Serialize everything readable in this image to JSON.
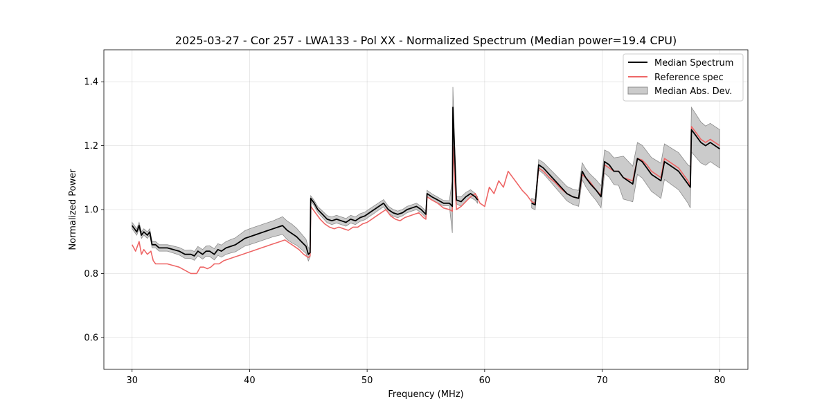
{
  "chart_data": {
    "type": "line",
    "title": "2025-03-27 - Cor 257 - LWA133 - Pol XX - Normalized Spectrum (Median power=19.4 CPU)",
    "xlabel": "Frequency (MHz)",
    "ylabel": "Normalized Power",
    "xlim": [
      27.6,
      82.4
    ],
    "ylim": [
      0.5,
      1.5
    ],
    "xticks": [
      30,
      40,
      50,
      60,
      70,
      80
    ],
    "yticks": [
      0.6,
      0.8,
      1.0,
      1.2,
      1.4
    ],
    "xtick_labels": [
      "30",
      "40",
      "50",
      "60",
      "70",
      "80"
    ],
    "ytick_labels": [
      "0.6",
      "0.8",
      "1.0",
      "1.2",
      "1.4"
    ],
    "grid": true,
    "legend_position": "top-right",
    "colors": {
      "median": "#000000",
      "reference": "#ee6666",
      "mad_fill": "#a0a0a0",
      "mad_edge": "#8c8c8c"
    },
    "series": [
      {
        "name": "Median Spectrum",
        "segments": [
          {
            "x": [
              30.0,
              30.4,
              30.6,
              30.8,
              31.0,
              31.3,
              31.5,
              31.7,
              32.0,
              32.3,
              32.6,
              33.0,
              33.5,
              34.0,
              34.5,
              35.0,
              35.3,
              35.6,
              36.0,
              36.3,
              36.6,
              37.0,
              37.3,
              37.6,
              38.0,
              38.4,
              38.8,
              39.2,
              39.6,
              40.0,
              40.4,
              40.8,
              41.2,
              41.6,
              42.0,
              42.4,
              42.8,
              43.2,
              43.6,
              44.0,
              44.4,
              44.8,
              45.0,
              45.15,
              45.2,
              45.5,
              45.8,
              46.2,
              46.6,
              47.0,
              47.4,
              47.8,
              48.2,
              48.6,
              49.0,
              49.4,
              49.8,
              50.2,
              50.6,
              51.0,
              51.4,
              51.8,
              52.2,
              52.6,
              53.0,
              53.4,
              53.8,
              54.2,
              54.6,
              55.0,
              55.1,
              55.5,
              56.0,
              56.5,
              57.0,
              57.25,
              57.3,
              57.6,
              58.0,
              58.4,
              58.8,
              59.2,
              59.4
            ],
            "y": [
              0.95,
              0.93,
              0.95,
              0.92,
              0.93,
              0.92,
              0.93,
              0.89,
              0.89,
              0.88,
              0.88,
              0.88,
              0.875,
              0.87,
              0.86,
              0.86,
              0.855,
              0.87,
              0.86,
              0.87,
              0.87,
              0.86,
              0.875,
              0.87,
              0.88,
              0.885,
              0.89,
              0.9,
              0.91,
              0.915,
              0.92,
              0.925,
              0.93,
              0.935,
              0.94,
              0.945,
              0.95,
              0.935,
              0.925,
              0.915,
              0.9,
              0.885,
              0.86,
              0.865,
              1.035,
              1.02,
              1.0,
              0.985,
              0.97,
              0.965,
              0.97,
              0.965,
              0.96,
              0.97,
              0.965,
              0.975,
              0.98,
              0.99,
              1.0,
              1.01,
              1.02,
              1.0,
              0.99,
              0.985,
              0.99,
              1.0,
              1.005,
              1.01,
              1.0,
              0.985,
              1.05,
              1.04,
              1.03,
              1.02,
              1.02,
              1.01,
              1.32,
              1.03,
              1.025,
              1.04,
              1.05,
              1.04,
              1.03
            ]
          },
          {
            "x": [
              64.0,
              64.3,
              64.6,
              65.0,
              65.5,
              66.0,
              66.5,
              67.0,
              67.5,
              68.0,
              68.3,
              68.6,
              69.0,
              69.5,
              69.9,
              70.2,
              70.6,
              71.0,
              71.4,
              71.8,
              72.2,
              72.6,
              73.0,
              73.4,
              73.8,
              74.2,
              74.6,
              75.0,
              75.3,
              75.7,
              76.1,
              76.5,
              76.9,
              77.3,
              77.5,
              77.6,
              78.0,
              78.4,
              78.8,
              79.2,
              79.6,
              80.0
            ],
            "y": [
              1.02,
              1.015,
              1.14,
              1.13,
              1.11,
              1.09,
              1.07,
              1.05,
              1.04,
              1.035,
              1.12,
              1.1,
              1.08,
              1.06,
              1.04,
              1.15,
              1.14,
              1.12,
              1.12,
              1.1,
              1.09,
              1.08,
              1.16,
              1.15,
              1.13,
              1.11,
              1.1,
              1.09,
              1.15,
              1.14,
              1.13,
              1.12,
              1.1,
              1.08,
              1.07,
              1.25,
              1.23,
              1.21,
              1.2,
              1.21,
              1.2,
              1.19
            ]
          }
        ]
      },
      {
        "name": "Reference spec",
        "segments": [
          {
            "x": [
              30.0,
              30.3,
              30.6,
              30.8,
              31.0,
              31.3,
              31.6,
              31.8,
              32.0,
              32.5,
              33.0,
              33.5,
              34.0,
              34.5,
              35.0,
              35.5,
              35.8,
              36.1,
              36.4,
              36.7,
              37.0,
              37.4,
              37.8,
              38.2,
              38.6,
              39.0,
              39.4,
              39.8,
              40.2,
              40.6,
              41.0,
              41.4,
              41.8,
              42.2,
              42.6,
              43.0,
              43.4,
              43.8,
              44.2,
              44.6,
              45.0,
              45.15,
              45.2,
              45.6,
              46.0,
              46.4,
              46.8,
              47.2,
              47.6,
              48.0,
              48.4,
              48.8,
              49.2,
              49.6,
              50.0,
              50.4,
              50.8,
              51.2,
              51.6,
              52.0,
              52.4,
              52.8,
              53.2,
              53.6,
              54.0,
              54.4,
              54.8,
              55.0,
              55.1,
              55.5,
              56.0,
              56.5,
              57.0,
              57.25,
              57.3,
              57.6,
              58.0,
              58.4,
              58.8,
              59.2,
              59.6,
              60.0,
              60.4,
              60.8,
              61.2,
              61.6,
              62.0,
              62.4,
              62.8,
              63.2,
              63.6,
              64.0,
              64.3,
              64.6,
              65.0,
              65.5,
              66.0,
              66.5,
              67.0,
              67.5,
              68.0,
              68.3,
              68.6,
              69.0,
              69.5,
              69.9,
              70.2,
              70.6,
              71.0,
              71.4,
              71.8,
              72.2,
              72.6,
              73.0,
              73.4,
              73.8,
              74.2,
              74.6,
              75.0,
              75.3,
              75.7,
              76.1,
              76.5,
              76.9,
              77.3,
              77.5,
              77.6,
              78.0,
              78.4,
              78.8,
              79.2,
              79.6,
              80.0
            ],
            "y": [
              0.89,
              0.87,
              0.9,
              0.86,
              0.875,
              0.86,
              0.87,
              0.84,
              0.83,
              0.83,
              0.83,
              0.825,
              0.82,
              0.81,
              0.8,
              0.8,
              0.82,
              0.82,
              0.815,
              0.82,
              0.83,
              0.83,
              0.84,
              0.845,
              0.85,
              0.855,
              0.86,
              0.865,
              0.87,
              0.875,
              0.88,
              0.885,
              0.89,
              0.895,
              0.9,
              0.905,
              0.895,
              0.885,
              0.875,
              0.86,
              0.85,
              0.855,
              1.01,
              0.99,
              0.97,
              0.955,
              0.945,
              0.94,
              0.945,
              0.94,
              0.935,
              0.945,
              0.945,
              0.955,
              0.96,
              0.97,
              0.98,
              0.99,
              1.0,
              0.98,
              0.97,
              0.965,
              0.975,
              0.98,
              0.985,
              0.99,
              0.975,
              0.97,
              1.04,
              1.03,
              1.02,
              1.005,
              1.0,
              0.995,
              1.2,
              1.0,
              1.01,
              1.025,
              1.04,
              1.05,
              1.02,
              1.01,
              1.07,
              1.05,
              1.09,
              1.07,
              1.12,
              1.1,
              1.08,
              1.06,
              1.045,
              1.025,
              1.02,
              1.13,
              1.12,
              1.1,
              1.085,
              1.065,
              1.05,
              1.04,
              1.035,
              1.11,
              1.1,
              1.085,
              1.06,
              1.045,
              1.14,
              1.13,
              1.12,
              1.12,
              1.1,
              1.095,
              1.09,
              1.16,
              1.155,
              1.14,
              1.12,
              1.11,
              1.1,
              1.16,
              1.15,
              1.14,
              1.13,
              1.11,
              1.09,
              1.075,
              1.26,
              1.24,
              1.22,
              1.21,
              1.22,
              1.21,
              1.2
            ]
          }
        ]
      },
      {
        "name": "Median Abs. Dev.",
        "band_width": [
          {
            "x": [
              30.0,
              33.0,
              36.0,
              38.0,
              40.0,
              42.0,
              43.5,
              45.1,
              45.2,
              47.0,
              50.0,
              53.0,
              55.0,
              57.0,
              57.2,
              57.28,
              57.35,
              58.0,
              59.4
            ],
            "halfwidth": [
              0.01,
              0.01,
              0.015,
              0.02,
              0.025,
              0.025,
              0.03,
              0.02,
              0.008,
              0.012,
              0.012,
              0.01,
              0.01,
              0.008,
              0.08,
              0.085,
              0.01,
              0.015,
              0.01
            ]
          },
          {
            "x": [
              64.0,
              66.0,
              68.0,
              70.0,
              71.5,
              71.6,
              73.0,
              75.0,
              77.4,
              77.6,
              79.0,
              80.0
            ],
            "halfwidth": [
              0.015,
              0.02,
              0.025,
              0.035,
              0.045,
              0.07,
              0.05,
              0.055,
              0.06,
              0.07,
              0.06,
              0.06
            ]
          }
        ]
      }
    ]
  }
}
